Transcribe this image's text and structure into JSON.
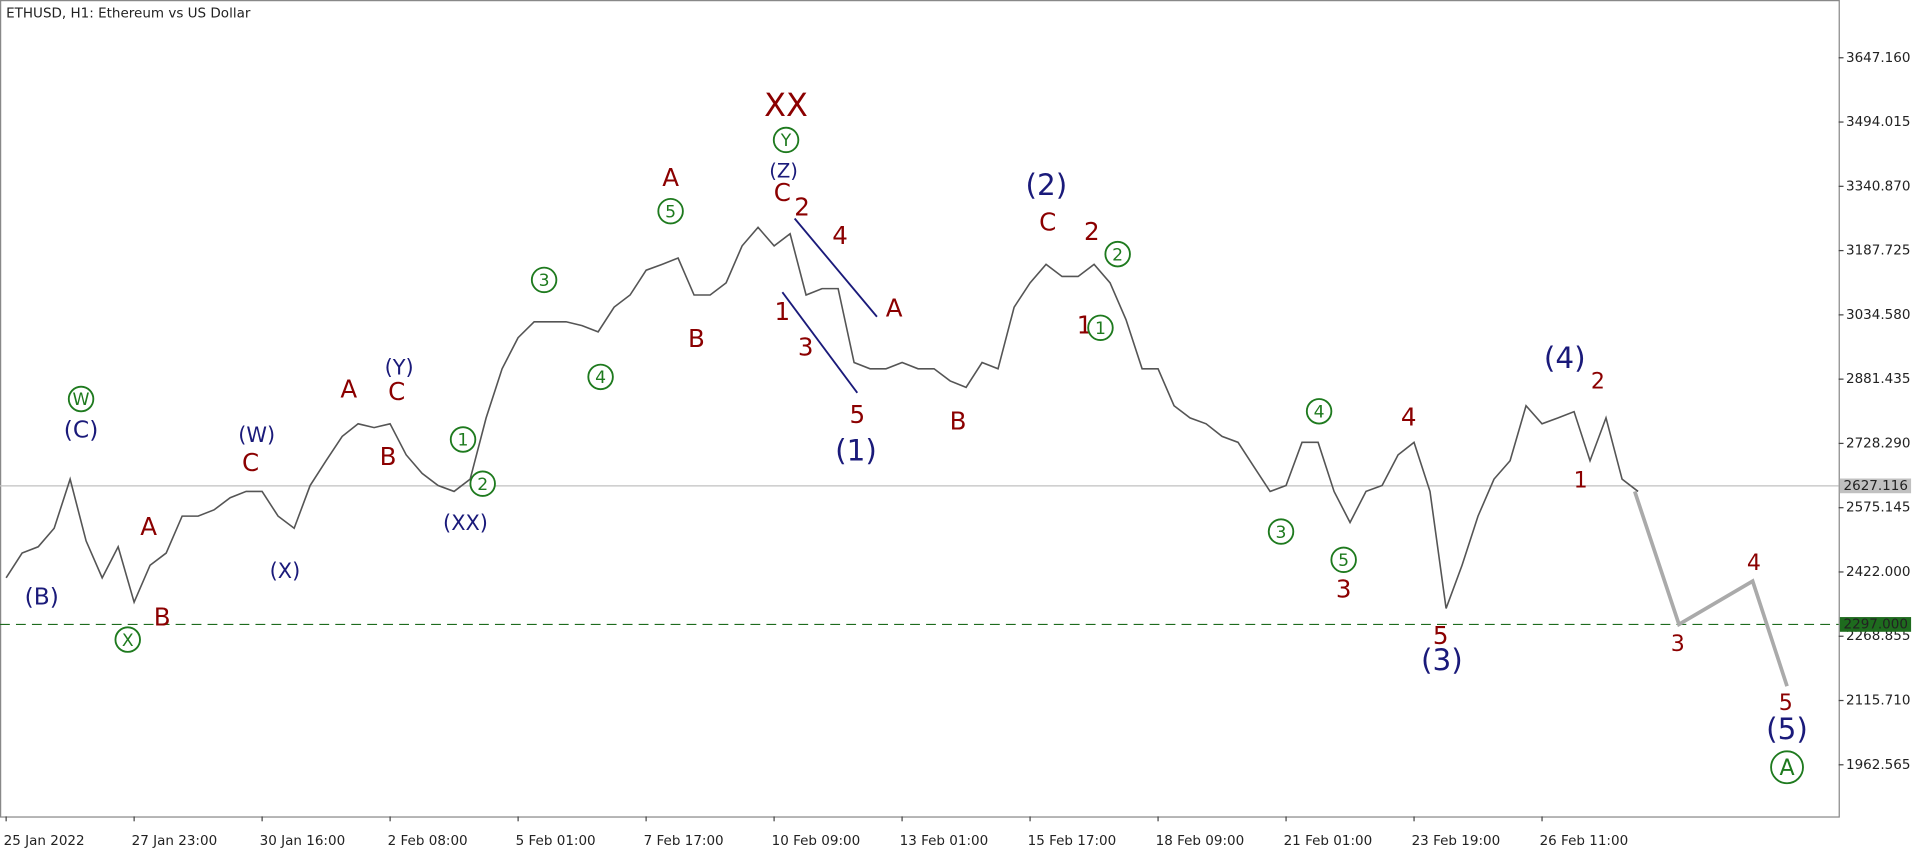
{
  "chart_data": {
    "type": "line",
    "title": "ETHUSD, H1:  Ethereum vs US Dollar",
    "categories": [
      "25 Jan 2022",
      null,
      null,
      null,
      null,
      null,
      null,
      null,
      "27 Jan 23:00",
      null,
      null,
      null,
      null,
      null,
      null,
      null,
      "30 Jan 16:00",
      null,
      null,
      null,
      null,
      null,
      null,
      null,
      "2 Feb 08:00",
      null,
      null,
      null,
      null,
      null,
      null,
      null,
      "5 Feb 01:00",
      null,
      null,
      null,
      null,
      null,
      null,
      null,
      "7 Feb 17:00",
      null,
      null,
      null,
      null,
      null,
      null,
      null,
      "10 Feb 09:00",
      null,
      null,
      null,
      null,
      null,
      null,
      null,
      "13 Feb 01:00",
      null,
      null,
      null,
      null,
      null,
      null,
      null,
      "15 Feb 17:00",
      null,
      null,
      null,
      null,
      null,
      null,
      null,
      "18 Feb 09:00",
      null,
      null,
      null,
      null,
      null,
      null,
      null,
      "21 Feb 01:00",
      null,
      null,
      null,
      null,
      null,
      null,
      null,
      "23 Feb 19:00",
      null,
      null,
      null,
      null,
      null,
      null,
      null,
      "26 Feb 11:00",
      null,
      null,
      null,
      null,
      null,
      null,
      null,
      null,
      null,
      null,
      null,
      null,
      null,
      null,
      null,
      null,
      null,
      null
    ],
    "series": [
      {
        "color": "#555555",
        "values": [
          2408,
          2467,
          2482,
          2526,
          2643,
          2496,
          2408,
          2482,
          2350,
          2438,
          2467,
          2555,
          2555,
          2570,
          2599,
          2614,
          2614,
          2555,
          2526,
          2628,
          2687,
          2745,
          2775,
          2766,
          2775,
          2701,
          2657,
          2628,
          2614,
          2643,
          2789,
          2906,
          2980,
          3018,
          3018,
          3018,
          3009,
          2994,
          3053,
          3082,
          3141,
          3155,
          3170,
          3082,
          3082,
          3111,
          3199,
          3243,
          3199,
          3228,
          3082,
          3097,
          3097,
          2921,
          2906,
          2906,
          2921,
          2906,
          2906,
          2877,
          2862,
          2921,
          2906,
          3053,
          3111,
          3155,
          3126,
          3126,
          3155,
          3111,
          3023,
          2906,
          2906,
          2818,
          2789,
          2775,
          2745,
          2731,
          2672,
          2614,
          2628,
          2731,
          2731,
          2614,
          2540,
          2614,
          2628,
          2701,
          2731,
          2614,
          2335,
          2438,
          2555,
          2643,
          2687,
          2818,
          2775,
          2789,
          2804,
          2687,
          2789,
          2643,
          2614,
          null,
          null,
          null,
          null,
          null,
          null,
          null,
          null,
          null,
          null,
          null,
          null
        ]
      }
    ],
    "projection": {
      "color": "#aaaaaa",
      "values": [
        2614,
        2297,
        2400,
        2150
      ]
    },
    "ylim": [
      1839.6,
      3784.8
    ],
    "yticks": [
      {
        "value": 1962.565,
        "label": "1962.565"
      },
      {
        "value": 2115.71,
        "label": "2115.710"
      },
      {
        "value": 2268.855,
        "label": "2268.855"
      },
      {
        "value": 2422,
        "label": "2422.000"
      },
      {
        "value": 2575.145,
        "label": "2575.145"
      },
      {
        "value": 2728.29,
        "label": "2728.290"
      },
      {
        "value": 2881.435,
        "label": "2881.435"
      },
      {
        "value": 3034.58,
        "label": "3034.580"
      },
      {
        "value": 3187.725,
        "label": "3187.725"
      },
      {
        "value": 3340.87,
        "label": "3340.870"
      },
      {
        "value": 3494.015,
        "label": "3494.015"
      },
      {
        "value": 3647.16,
        "label": "3647.160"
      }
    ],
    "current_price": {
      "value": 2627.116,
      "label": "2627.116",
      "color": "#c0c0c0"
    },
    "level": {
      "value": 2297,
      "label": "2297.000",
      "color": "#1e6b1e"
    },
    "annotations": [
      {
        "text": "XX",
        "color": "#8b0000"
      },
      {
        "text": "Y",
        "color": "#1e7a1e"
      },
      {
        "text": "(Z)",
        "color": "#1a1a7a"
      },
      {
        "text": "C",
        "color": "#8b0000"
      },
      {
        "text": "2",
        "color": "#8b0000"
      },
      {
        "text": "4",
        "color": "#8b0000"
      },
      {
        "text": "1",
        "color": "#8b0000"
      },
      {
        "text": "3",
        "color": "#8b0000"
      },
      {
        "text": "A",
        "color": "#8b0000"
      },
      {
        "text": "5",
        "color": "#8b0000"
      },
      {
        "text": "(1)",
        "color": "#1a1a7a"
      },
      {
        "text": "B",
        "color": "#8b0000"
      },
      {
        "text": "A",
        "color": "#8b0000"
      },
      {
        "text": "5",
        "color": "#1e7a1e"
      },
      {
        "text": "B",
        "color": "#8b0000"
      },
      {
        "text": "3",
        "color": "#1e7a1e"
      },
      {
        "text": "4",
        "color": "#1e7a1e"
      },
      {
        "text": "W",
        "color": "#1e7a1e"
      },
      {
        "text": "(C)",
        "color": "#1a1a7a"
      },
      {
        "text": "(B)",
        "color": "#1a1a7a"
      },
      {
        "text": "X",
        "color": "#1e7a1e"
      },
      {
        "text": "A",
        "color": "#8b0000"
      },
      {
        "text": "B",
        "color": "#8b0000"
      },
      {
        "text": "(W)",
        "color": "#1a1a7a"
      },
      {
        "text": "C",
        "color": "#8b0000"
      },
      {
        "text": "(X)",
        "color": "#1a1a7a"
      },
      {
        "text": "A",
        "color": "#8b0000"
      },
      {
        "text": "(Y)",
        "color": "#1a1a7a"
      },
      {
        "text": "C",
        "color": "#8b0000"
      },
      {
        "text": "B",
        "color": "#8b0000"
      },
      {
        "text": "1",
        "color": "#1e7a1e"
      },
      {
        "text": "2",
        "color": "#1e7a1e"
      },
      {
        "text": "(XX)",
        "color": "#1a1a7a"
      },
      {
        "text": "(2)",
        "color": "#1a1a7a"
      },
      {
        "text": "C",
        "color": "#8b0000"
      },
      {
        "text": "2",
        "color": "#8b0000"
      },
      {
        "text": "2",
        "color": "#1e7a1e"
      },
      {
        "text": "1",
        "color": "#8b0000"
      },
      {
        "text": "1",
        "color": "#1e7a1e"
      },
      {
        "text": "4",
        "color": "#1e7a1e"
      },
      {
        "text": "3",
        "color": "#1e7a1e"
      },
      {
        "text": "5",
        "color": "#1e7a1e"
      },
      {
        "text": "3",
        "color": "#8b0000"
      },
      {
        "text": "4",
        "color": "#8b0000"
      },
      {
        "text": "5",
        "color": "#8b0000"
      },
      {
        "text": "(3)",
        "color": "#1a1a7a"
      },
      {
        "text": "(4)",
        "color": "#1a1a7a"
      },
      {
        "text": "2",
        "color": "#8b0000"
      },
      {
        "text": "1",
        "color": "#8b0000"
      },
      {
        "text": "3",
        "color": "#8b0000"
      },
      {
        "text": "4",
        "color": "#8b0000"
      },
      {
        "text": "5",
        "color": "#8b0000"
      },
      {
        "text": "(5)",
        "color": "#1a1a7a"
      },
      {
        "text": "A",
        "color": "#1e7a1e"
      }
    ]
  }
}
